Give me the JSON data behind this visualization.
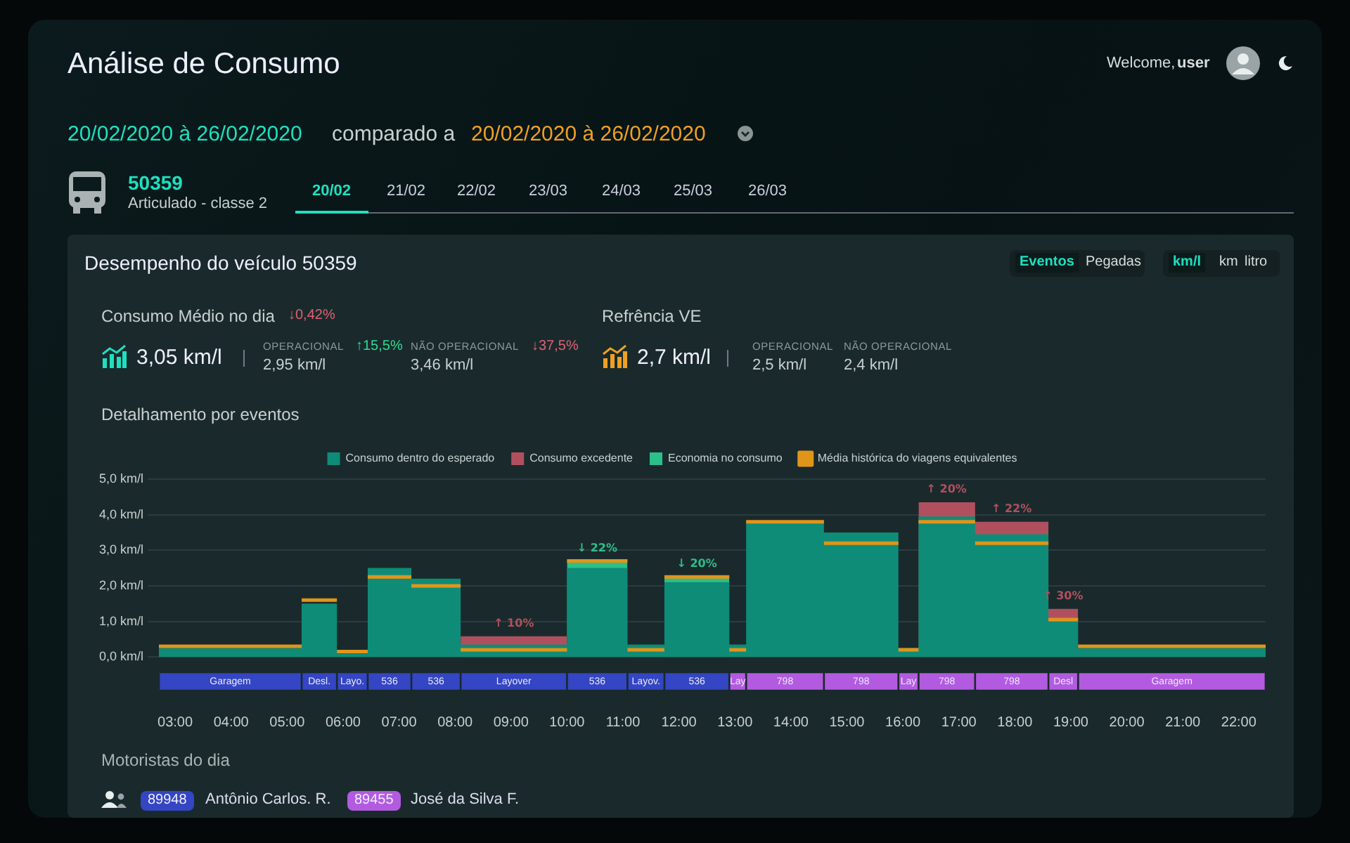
{
  "chart_data": [
    {
      "type": "area",
      "title": "Detalhamento por eventos",
      "stacked": true,
      "grid": "y",
      "legend": "top",
      "tick_labels": "y",
      "x": [
        2.71,
        5.26,
        5.26,
        5.89,
        5.89,
        6.44,
        6.44,
        7.22,
        7.22,
        8.1,
        8.1,
        10.0,
        10.0,
        11.08,
        11.08,
        11.74,
        11.74,
        12.9,
        12.9,
        13.2,
        13.2,
        14.59,
        14.59,
        15.92,
        15.92,
        16.28,
        16.28,
        17.29,
        17.29,
        18.6,
        18.6,
        19.13,
        19.13,
        22.48
      ],
      "xlim": [
        2.71,
        22.48
      ],
      "ylim": [
        0,
        5
      ],
      "yticks": [
        {
          "value": 0,
          "label": "0,0 km/l"
        },
        {
          "value": 1,
          "label": "1,0 km/l"
        },
        {
          "value": 2,
          "label": "2,0 km/l"
        },
        {
          "value": 3,
          "label": "3,0 km/l"
        },
        {
          "value": 4,
          "label": "4,0 km/l"
        },
        {
          "value": 5,
          "label": "5,0 km/l"
        }
      ],
      "series": [
        {
          "name": "Consumo dentro do esperado",
          "color": "#0e8c78",
          "values": [
            0.25,
            0.25,
            1.5,
            1.5,
            0.1,
            0.1,
            2.5,
            2.5,
            2.2,
            2.2,
            0.35,
            0.35,
            2.5,
            2.5,
            0.35,
            0.35,
            2.1,
            2.1,
            0.35,
            0.35,
            3.8,
            3.8,
            3.5,
            3.5,
            0.25,
            0.25,
            3.95,
            3.95,
            3.45,
            3.45,
            1.0,
            1.0,
            0.25,
            0.25
          ]
        },
        {
          "name": "Consumo excedente",
          "color": "#b0505f",
          "values": [
            null,
            null,
            null,
            null,
            null,
            null,
            null,
            null,
            null,
            null,
            0.23,
            0.23,
            null,
            null,
            null,
            null,
            null,
            null,
            null,
            null,
            null,
            null,
            null,
            null,
            null,
            null,
            0.4,
            0.4,
            0.35,
            0.35,
            0.35,
            0.35,
            null,
            null
          ]
        },
        {
          "name": "Economia no consumo",
          "color": "#2bbf8a",
          "values": [
            null,
            null,
            null,
            null,
            null,
            null,
            null,
            null,
            null,
            null,
            null,
            null,
            0.2,
            0.2,
            null,
            null,
            0.15,
            0.15,
            null,
            null,
            null,
            null,
            null,
            null,
            null,
            null,
            null,
            null,
            null,
            null,
            null,
            null,
            null,
            null
          ]
        },
        {
          "name": "Média histórica do viagens equivalentes",
          "type": "line",
          "color": "#e0951a",
          "values": [
            0.3,
            0.3,
            1.6,
            1.6,
            0.15,
            0.15,
            2.25,
            2.25,
            2.0,
            2.0,
            0.2,
            0.2,
            2.7,
            2.7,
            0.2,
            0.2,
            2.25,
            2.25,
            0.2,
            0.2,
            3.8,
            3.8,
            3.2,
            3.2,
            0.2,
            0.2,
            3.8,
            3.8,
            3.2,
            3.2,
            1.05,
            1.05,
            0.3,
            0.3
          ]
        }
      ],
      "annotations": [
        "Análise de Consumo",
        "Welcome,",
        "user",
        "20/02/2020 à 26/02/2020",
        "comparado a",
        "20/02/2020 à 26/02/2020",
        "50359",
        "Articulado - classe 2",
        "20/02",
        "21/02",
        "22/02",
        "23/03",
        "24/03",
        "25/03",
        "26/03",
        "Desempenho do veículo 50359",
        "Eventos",
        "Pegadas",
        "km/l",
        "km",
        "litro",
        "Consumo Médio no dia",
        "↓0,42%",
        "3,05 km/l",
        "OPERACIONAL",
        "↑15,5%",
        "2,95 km/l",
        "NÃO OPERACIONAL",
        "↓37,5%",
        "3,46 km/l",
        "Refrência VE",
        "2,7 km/l",
        "OPERACIONAL",
        "2,5 km/l",
        "NÃO OPERACIONAL",
        "2,4 km/l",
        "Motoristas do dia",
        "89948",
        "Antônio Carlos. R.",
        "89455",
        "José da Silva F.",
        {
          "text": "↑ 10%",
          "x": 9.05,
          "y": 0.58
        },
        {
          "text": "↓ 22%",
          "x": 10.54,
          "y": 2.7
        },
        {
          "text": "↓ 20%",
          "x": 12.32,
          "y": 2.25
        },
        {
          "text": "↑ 20%",
          "x": 16.78,
          "y": 4.35
        },
        {
          "text": "↑ 22%",
          "x": 17.94,
          "y": 3.8
        },
        {
          "text": "↑ 30%",
          "x": 18.86,
          "y": 1.35
        }
      ]
    },
    {
      "type": "bar",
      "orientation": "horizontal",
      "tick_labels": "x",
      "categories": [
        null
      ],
      "xlim": [
        2.71,
        22.48
      ],
      "xticks": [
        {
          "value": 3,
          "label": "03:00"
        },
        {
          "value": 4,
          "label": "04:00"
        },
        {
          "value": 5,
          "label": "05:00"
        },
        {
          "value": 6,
          "label": "06:00"
        },
        {
          "value": 7,
          "label": "07:00"
        },
        {
          "value": 8,
          "label": "08:00"
        },
        {
          "value": 9,
          "label": "09:00"
        },
        {
          "value": 10,
          "label": "10:00"
        },
        {
          "value": 11,
          "label": "11:00"
        },
        {
          "value": 12,
          "label": "12:00"
        },
        {
          "value": 13,
          "label": "13:00"
        },
        {
          "value": 14,
          "label": "14:00"
        },
        {
          "value": 15,
          "label": "15:00"
        },
        {
          "value": 16,
          "label": "16:00"
        },
        {
          "value": 17,
          "label": "17:00"
        },
        {
          "value": 18,
          "label": "18:00"
        },
        {
          "value": 19,
          "label": "19:00"
        },
        {
          "value": 20,
          "label": "20:00"
        },
        {
          "value": 21,
          "label": "21:00"
        },
        {
          "value": 22,
          "label": "22:00"
        }
      ],
      "series": [
        {
          "name": "Garagem",
          "color": "#3446c4",
          "base": [
            2.71
          ],
          "values": [
            2.55
          ]
        },
        {
          "name": "Desl.",
          "color": "#3446c4",
          "base": [
            5.26
          ],
          "values": [
            0.63
          ]
        },
        {
          "name": "Layo.",
          "color": "#3446c4",
          "base": [
            5.89
          ],
          "values": [
            0.55
          ]
        },
        {
          "name": "536",
          "color": "#3446c4",
          "base": [
            6.44
          ],
          "values": [
            0.78
          ]
        },
        {
          "name": "536",
          "color": "#3446c4",
          "base": [
            7.22
          ],
          "values": [
            0.88
          ]
        },
        {
          "name": "Layover",
          "color": "#3446c4",
          "base": [
            8.1
          ],
          "values": [
            1.9
          ]
        },
        {
          "name": "536",
          "color": "#3446c4",
          "base": [
            10.0
          ],
          "values": [
            1.08
          ]
        },
        {
          "name": "Layov.",
          "color": "#3446c4",
          "base": [
            11.08
          ],
          "values": [
            0.66
          ]
        },
        {
          "name": "536",
          "color": "#3446c4",
          "base": [
            11.74
          ],
          "values": [
            1.16
          ]
        },
        {
          "name": "Lay",
          "color": "#b35be0",
          "base": [
            12.9
          ],
          "values": [
            0.3
          ]
        },
        {
          "name": "798",
          "color": "#b35be0",
          "base": [
            13.2
          ],
          "values": [
            1.39
          ]
        },
        {
          "name": "798",
          "color": "#b35be0",
          "base": [
            14.59
          ],
          "values": [
            1.33
          ]
        },
        {
          "name": "Lay",
          "color": "#b35be0",
          "base": [
            15.92
          ],
          "values": [
            0.36
          ]
        },
        {
          "name": "798",
          "color": "#b35be0",
          "base": [
            16.28
          ],
          "values": [
            1.01
          ]
        },
        {
          "name": "798",
          "color": "#b35be0",
          "base": [
            17.29
          ],
          "values": [
            1.31
          ]
        },
        {
          "name": "Desl",
          "color": "#b35be0",
          "base": [
            18.6
          ],
          "values": [
            0.53
          ]
        },
        {
          "name": "Garagem",
          "color": "#b35be0",
          "base": [
            19.13
          ],
          "values": [
            3.35
          ]
        }
      ]
    }
  ]
}
